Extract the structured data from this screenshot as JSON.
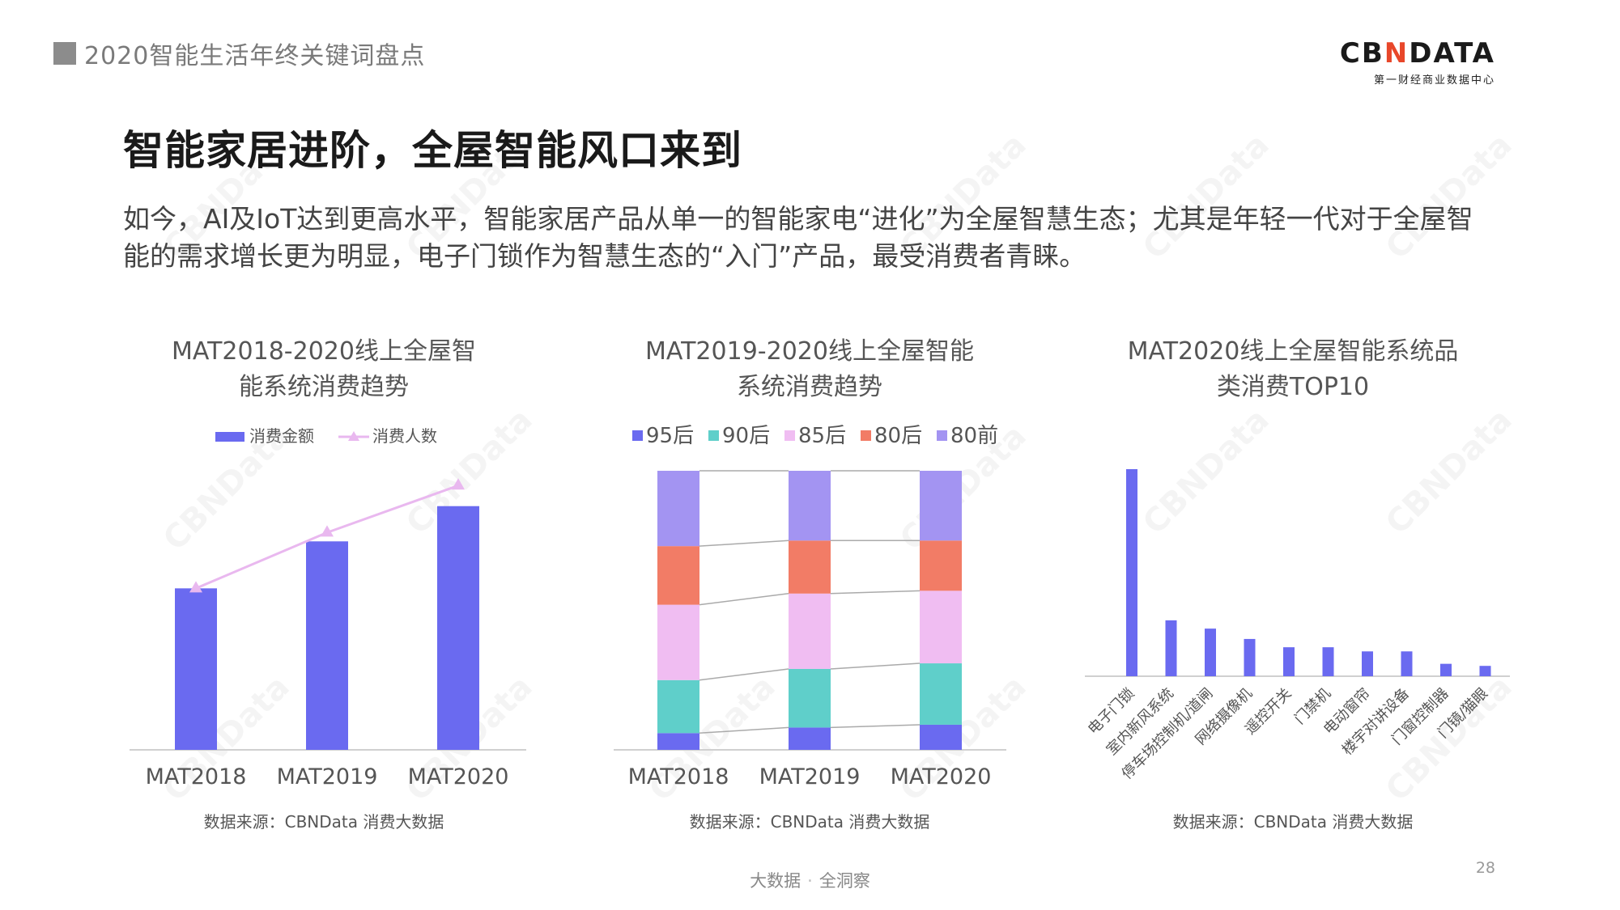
{
  "header": {
    "section": "2020智能生活年终关键词盘点"
  },
  "logo": {
    "main_left": "CB",
    "main_accent": "N",
    "main_right": "DATA",
    "sub": "第一财经商业数据中心",
    "accent_color": "#e8472a"
  },
  "title": "智能家居进阶，全屋智能风口来到",
  "intro": "如今，AI及IoT达到更高水平，智能家居产品从单一的智能家电“进化”为全屋智慧生态；尤其是年轻一代对于全屋智能的需求增长更为明显，电子门锁作为智慧生态的“入门”产品，最受消费者青睐。",
  "watermark": "CBNData",
  "charts": {
    "c1": {
      "title_line1": "MAT2018-2020线上全屋智",
      "title_line2": "能系统消费趋势",
      "source": "数据来源：CBNData 消费大数据"
    },
    "c2": {
      "title_line1": "MAT2019-2020线上全屋智能",
      "title_line2": "系统消费趋势",
      "source": "数据来源：CBNData 消费大数据"
    },
    "c3": {
      "title_line1": "MAT2020线上全屋智能系统品",
      "title_line2": "类消费TOP10",
      "source": "数据来源：CBNData 消费大数据"
    }
  },
  "chart_data": [
    {
      "type": "bar",
      "categories": [
        "MAT2018",
        "MAT2019",
        "MAT2020"
      ],
      "series": [
        {
          "name": "消费金额",
          "kind": "bar",
          "color": "#6a6af0",
          "values": [
            0.55,
            0.71,
            0.83
          ]
        },
        {
          "name": "消费人数",
          "kind": "line",
          "color": "#e9b8ef",
          "values": [
            0.55,
            0.74,
            0.9
          ]
        }
      ],
      "ylim": [
        0,
        1
      ]
    },
    {
      "type": "bar",
      "stacked": true,
      "categories": [
        "MAT2018",
        "MAT2019",
        "MAT2020"
      ],
      "series": [
        {
          "name": "95后",
          "color": "#6a6af0",
          "values": [
            6,
            8,
            9
          ]
        },
        {
          "name": "90后",
          "color": "#5fcfca",
          "values": [
            19,
            21,
            22
          ]
        },
        {
          "name": "85后",
          "color": "#f0bdf2",
          "values": [
            27,
            27,
            26
          ]
        },
        {
          "name": "80后",
          "color": "#f27c66",
          "values": [
            21,
            19,
            18
          ]
        },
        {
          "name": "80前",
          "color": "#a394f2",
          "values": [
            27,
            25,
            25
          ]
        }
      ],
      "ylim": [
        0,
        100
      ]
    },
    {
      "type": "bar",
      "categories": [
        "电子门锁",
        "室内新风系统",
        "停车场控制机/道闸",
        "网络摄像机",
        "遥控开关",
        "门禁机",
        "电动窗帘",
        "楼宇对讲设备",
        "门窗控制器",
        "门镜/猫眼"
      ],
      "values": [
        100,
        27,
        23,
        18,
        14,
        14,
        12,
        12,
        6,
        5
      ],
      "color": "#6a6af0",
      "ylim": [
        0,
        100
      ]
    }
  ]
}
